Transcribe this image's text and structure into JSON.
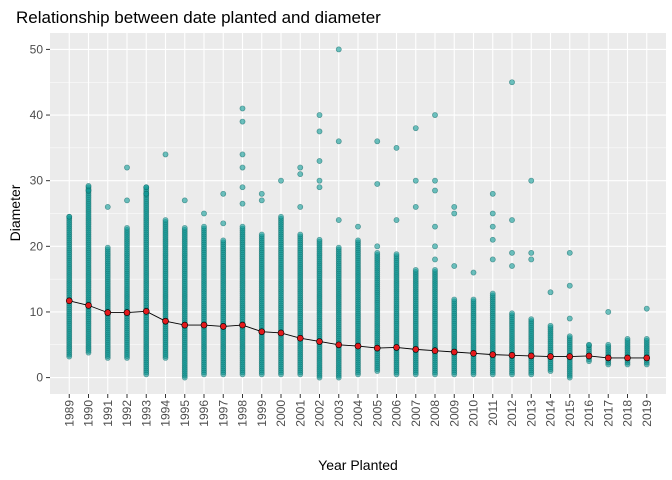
{
  "chart_data": {
    "type": "scatter",
    "title": "Relationship between date planted and diameter",
    "xlabel": "Year Planted",
    "ylabel": "Diameter",
    "ylim": [
      -2.5,
      52.5
    ],
    "yticks": [
      0,
      10,
      20,
      30,
      40,
      50
    ],
    "grid": true,
    "categories": [
      "1989",
      "1990",
      "1991",
      "1992",
      "1993",
      "1994",
      "1995",
      "1996",
      "1997",
      "1998",
      "1999",
      "2000",
      "2001",
      "2002",
      "2003",
      "2004",
      "2005",
      "2006",
      "2007",
      "2008",
      "2009",
      "2010",
      "2011",
      "2012",
      "2013",
      "2014",
      "2015",
      "2016",
      "2017",
      "2018",
      "2019"
    ],
    "colors": {
      "points": "#0e9a96",
      "mean_points": "#e31a1c",
      "mean_line": "#000000",
      "panel": "#ebebeb",
      "grid": "#ffffff"
    },
    "series": [
      {
        "kind": "mean_line",
        "values": [
          11.7,
          11.0,
          9.9,
          9.9,
          10.1,
          8.6,
          8.0,
          8.0,
          7.8,
          8.0,
          7.0,
          6.8,
          6.0,
          5.5,
          5.0,
          4.8,
          4.5,
          4.6,
          4.3,
          4.1,
          3.9,
          3.7,
          3.5,
          3.4,
          3.3,
          3.2,
          3.2,
          3.3,
          3.0,
          3.0,
          3.0
        ]
      },
      {
        "kind": "points",
        "ranges": [
          [
            3.2,
            24.5
          ],
          [
            3.8,
            29.2
          ],
          [
            3.0,
            20.0
          ],
          [
            3.0,
            23.0
          ],
          [
            0.5,
            29.0
          ],
          [
            3.0,
            24.0
          ],
          [
            0.0,
            23.0
          ],
          [
            0.5,
            23.0
          ],
          [
            0.5,
            21.0
          ],
          [
            0.5,
            23.0
          ],
          [
            0.5,
            22.0
          ],
          [
            0.5,
            24.5
          ],
          [
            0.5,
            22.0
          ],
          [
            0.0,
            21.0
          ],
          [
            0.0,
            20.0
          ],
          [
            0.5,
            21.0
          ],
          [
            1.0,
            19.0
          ],
          [
            0.5,
            19.0
          ],
          [
            0.5,
            16.5
          ],
          [
            0.5,
            16.5
          ],
          [
            0.5,
            12.0
          ],
          [
            0.5,
            12.0
          ],
          [
            0.5,
            13.0
          ],
          [
            0.5,
            10.0
          ],
          [
            0.5,
            9.0
          ],
          [
            1.0,
            8.0
          ],
          [
            0.0,
            6.5
          ],
          [
            2.5,
            5.0
          ],
          [
            2.0,
            5.0
          ],
          [
            2.0,
            6.0
          ],
          [
            2.0,
            6.0
          ]
        ],
        "outliers": [
          [
            0,
            24.5
          ],
          [
            1,
            29.2
          ],
          [
            1,
            28.5
          ],
          [
            2,
            26.0
          ],
          [
            3,
            32.0
          ],
          [
            3,
            27.0
          ],
          [
            4,
            29.0
          ],
          [
            4,
            28.0
          ],
          [
            5,
            34.0
          ],
          [
            6,
            27.0
          ],
          [
            7,
            25.0
          ],
          [
            8,
            28.0
          ],
          [
            8,
            23.5
          ],
          [
            9,
            41.0
          ],
          [
            9,
            39.0
          ],
          [
            9,
            34.0
          ],
          [
            9,
            32.0
          ],
          [
            9,
            29.0
          ],
          [
            9,
            26.5
          ],
          [
            10,
            28.0
          ],
          [
            10,
            27.0
          ],
          [
            11,
            30.0
          ],
          [
            12,
            32.0
          ],
          [
            12,
            31.0
          ],
          [
            12,
            26.0
          ],
          [
            13,
            40.0
          ],
          [
            13,
            37.5
          ],
          [
            13,
            33.0
          ],
          [
            13,
            30.0
          ],
          [
            13,
            29.0
          ],
          [
            14,
            50.0
          ],
          [
            14,
            36.0
          ],
          [
            14,
            24.0
          ],
          [
            15,
            23.0
          ],
          [
            16,
            36.0
          ],
          [
            16,
            29.5
          ],
          [
            16,
            20.0
          ],
          [
            17,
            35.0
          ],
          [
            17,
            24.0
          ],
          [
            18,
            38.0
          ],
          [
            18,
            30.0
          ],
          [
            18,
            26.0
          ],
          [
            19,
            40.0
          ],
          [
            19,
            30.0
          ],
          [
            19,
            28.5
          ],
          [
            19,
            23.0
          ],
          [
            19,
            20.0
          ],
          [
            19,
            18.0
          ],
          [
            20,
            26.0
          ],
          [
            20,
            25.0
          ],
          [
            20,
            17.0
          ],
          [
            21,
            16.0
          ],
          [
            22,
            28.0
          ],
          [
            22,
            25.0
          ],
          [
            22,
            23.0
          ],
          [
            22,
            21.0
          ],
          [
            22,
            18.0
          ],
          [
            23,
            45.0
          ],
          [
            23,
            24.0
          ],
          [
            23,
            19.0
          ],
          [
            23,
            17.0
          ],
          [
            24,
            30.0
          ],
          [
            24,
            19.0
          ],
          [
            24,
            18.0
          ],
          [
            25,
            13.0
          ],
          [
            26,
            19.0
          ],
          [
            26,
            14.0
          ],
          [
            26,
            9.0
          ],
          [
            27,
            5.0
          ],
          [
            28,
            10.0
          ],
          [
            30,
            10.5
          ]
        ]
      }
    ]
  }
}
